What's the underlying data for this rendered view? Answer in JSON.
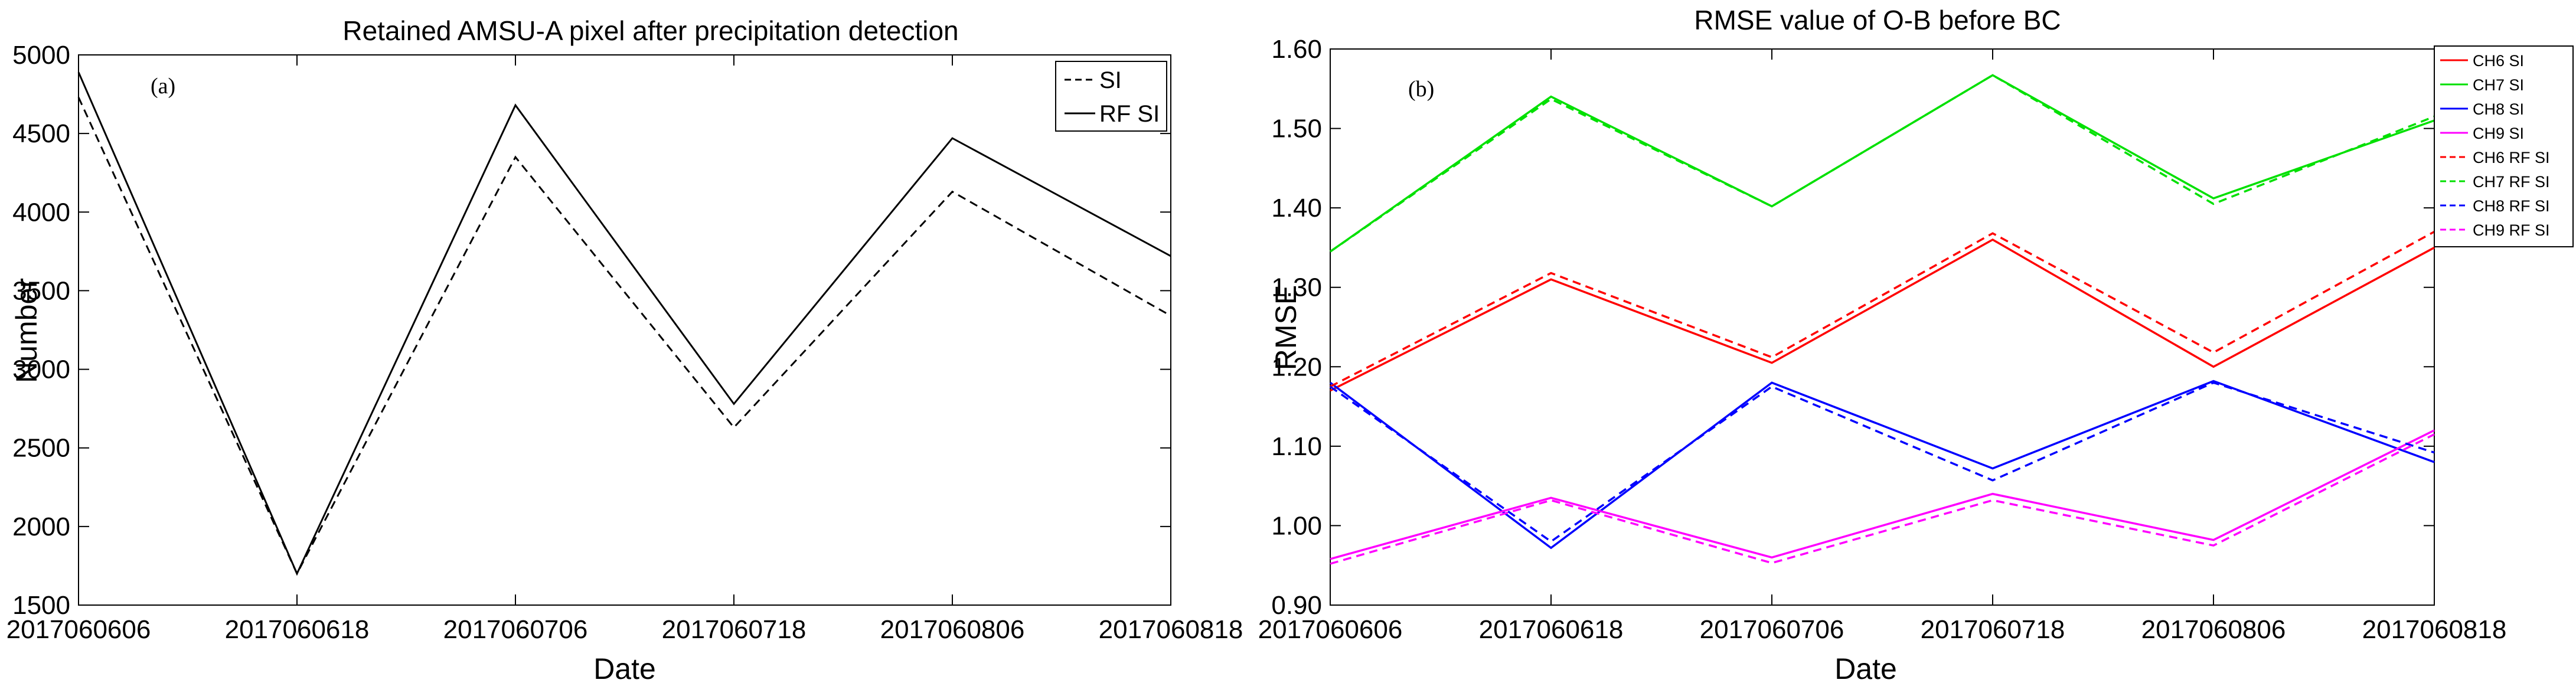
{
  "chart_data": [
    {
      "type": "line",
      "panel_label": "(a)",
      "title": "Retained AMSU-A pixel after precipitation detection",
      "xlabel": "Date",
      "ylabel": "Number",
      "categories": [
        "2017060606",
        "2017060618",
        "2017060706",
        "2017060718",
        "2017060806",
        "2017060818"
      ],
      "ylim": [
        1500,
        5000
      ],
      "yticks": [
        "1500",
        "2000",
        "2500",
        "3000",
        "3500",
        "4000",
        "4500",
        "5000"
      ],
      "grid": false,
      "legend": "top-right",
      "series": [
        {
          "name": "SI",
          "color": "#000000",
          "dashed": true,
          "values": [
            4730,
            1700,
            4350,
            2630,
            4130,
            3340
          ]
        },
        {
          "name": "RF SI",
          "color": "#000000",
          "dashed": false,
          "values": [
            4890,
            1700,
            4680,
            2780,
            4470,
            3720
          ]
        }
      ]
    },
    {
      "type": "line",
      "panel_label": "(b)",
      "title": "RMSE value of O-B before BC",
      "xlabel": "Date",
      "ylabel": "RMSE",
      "categories": [
        "2017060606",
        "2017060618",
        "2017060706",
        "2017060718",
        "2017060806",
        "2017060818"
      ],
      "ylim": [
        0.9,
        1.6
      ],
      "yticks": [
        "0.90",
        "1.00",
        "1.10",
        "1.20",
        "1.30",
        "1.40",
        "1.50",
        "1.60"
      ],
      "grid": false,
      "legend": "top-right",
      "series": [
        {
          "name": "CH6 SI",
          "color": "#ff0000",
          "dashed": false,
          "values": [
            1.17,
            1.31,
            1.205,
            1.36,
            1.2,
            1.35
          ]
        },
        {
          "name": "CH7 SI",
          "color": "#00e000",
          "dashed": false,
          "values": [
            1.345,
            1.54,
            1.402,
            1.567,
            1.412,
            1.51
          ]
        },
        {
          "name": "CH8 SI",
          "color": "#0000ff",
          "dashed": false,
          "values": [
            1.18,
            0.972,
            1.18,
            1.072,
            1.182,
            1.08
          ]
        },
        {
          "name": "CH9 SI",
          "color": "#ff00ff",
          "dashed": false,
          "values": [
            0.958,
            1.035,
            0.96,
            1.04,
            0.982,
            1.12
          ]
        },
        {
          "name": "CH6 RF SI",
          "color": "#ff0000",
          "dashed": true,
          "values": [
            1.175,
            1.318,
            1.212,
            1.368,
            1.218,
            1.37
          ]
        },
        {
          "name": "CH7 RF SI",
          "color": "#00e000",
          "dashed": true,
          "values": [
            1.345,
            1.537,
            1.402,
            1.567,
            1.405,
            1.515
          ]
        },
        {
          "name": "CH8 RF SI",
          "color": "#0000ff",
          "dashed": true,
          "values": [
            1.175,
            0.98,
            1.175,
            1.057,
            1.18,
            1.092
          ]
        },
        {
          "name": "CH9 RF SI",
          "color": "#ff00ff",
          "dashed": true,
          "values": [
            0.952,
            1.032,
            0.953,
            1.032,
            0.975,
            1.115
          ]
        }
      ]
    }
  ]
}
